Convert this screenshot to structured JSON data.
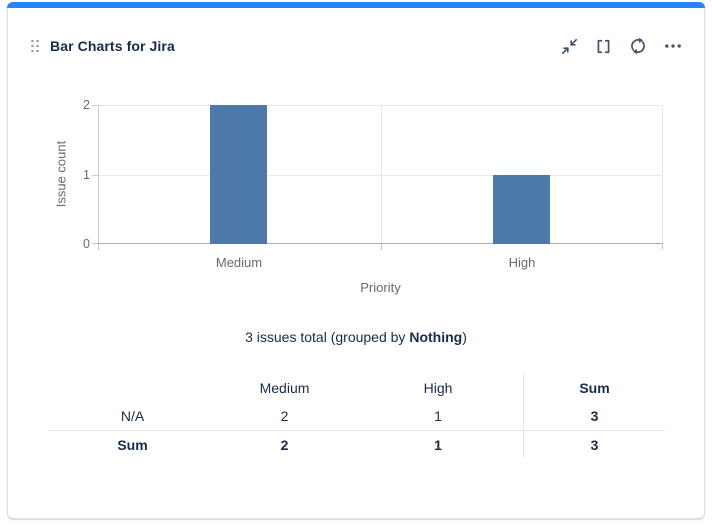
{
  "card": {
    "title": "Bar Charts for Jira"
  },
  "colors": {
    "accent": "#2684ff",
    "bar": "#4d79a8",
    "text_navy": "#172b4d",
    "chart_text_gray": "#6a6a6a"
  },
  "header_icons": {
    "drag": "drag-handle-icon",
    "collapse": "collapse-icon",
    "fullscreen": "fullscreen-icon",
    "refresh": "refresh-icon",
    "more": "more-options-icon"
  },
  "chart_data": {
    "type": "bar",
    "categories": [
      "Medium",
      "High"
    ],
    "values": [
      2,
      1
    ],
    "title": "",
    "xlabel": "Priority",
    "ylabel": "Issue count",
    "ylim": [
      0,
      2
    ],
    "yticks": [
      0,
      1,
      2
    ],
    "grid": true,
    "legend": false,
    "bar_color": "#4d79a8"
  },
  "summary": {
    "prefix": "3 issues total (grouped by ",
    "bold": "Nothing",
    "suffix": ")"
  },
  "table": {
    "headers": [
      "",
      "Medium",
      "High",
      "Sum"
    ],
    "rows": [
      {
        "label": "N/A",
        "values": [
          "2",
          "1",
          "3"
        ]
      },
      {
        "label": "Sum",
        "values": [
          "2",
          "1",
          "3"
        ]
      }
    ]
  }
}
